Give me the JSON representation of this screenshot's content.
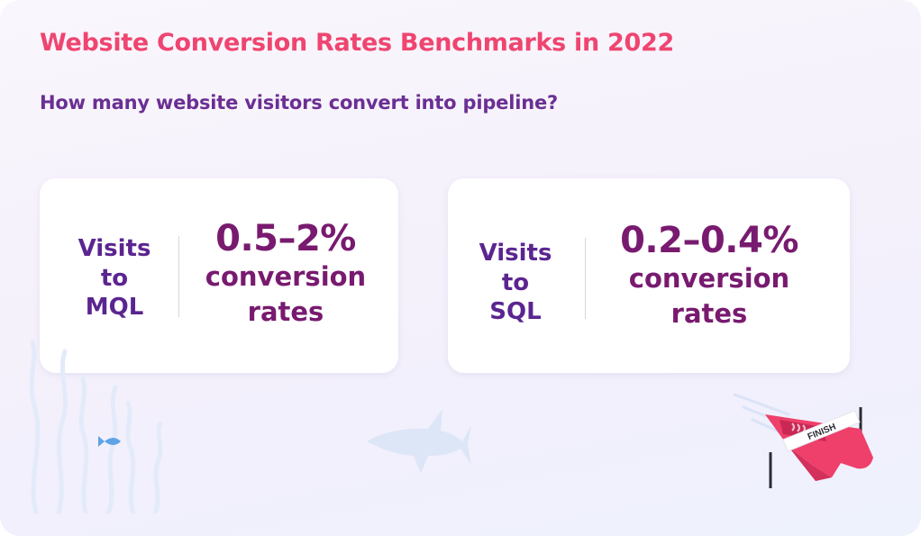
{
  "header": {
    "title": "Website Conversion Rates Benchmarks in 2022",
    "subtitle": "How many website visitors convert into pipeline?"
  },
  "cards": [
    {
      "label_lines": [
        "Visits",
        "to",
        "MQL"
      ],
      "value": "0.5–2%",
      "desc_lines": [
        "conversion",
        "rates"
      ]
    },
    {
      "label_lines": [
        "Visits",
        "to",
        "SQL"
      ],
      "value": "0.2–0.4%",
      "desc_lines": [
        "conversion",
        "rates"
      ]
    }
  ],
  "illustration": {
    "finish_text": "FINISH"
  },
  "colors": {
    "title": "#ef4570",
    "subtitle": "#6a2f93",
    "card_label": "#5b2590",
    "stat": "#781a6f",
    "boat": "#ef3f6b"
  }
}
